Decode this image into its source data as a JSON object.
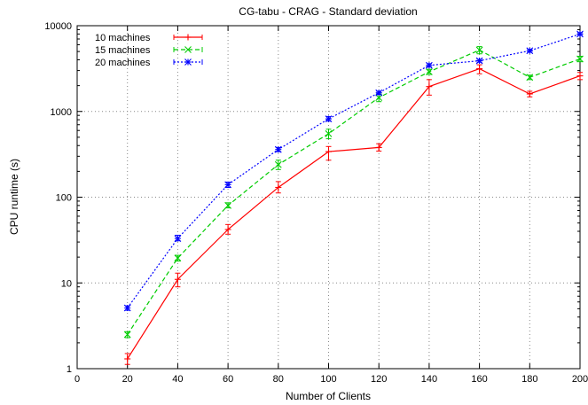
{
  "chart_data": {
    "type": "line",
    "title": "CG-tabu - CRAG - Standard deviation",
    "xlabel": "Number of Clients",
    "ylabel": "CPU runtime (s)",
    "xlim": [
      0,
      200
    ],
    "ylim": [
      1,
      10000
    ],
    "yscale": "log",
    "grid": true,
    "legend_position": "top-left",
    "x_ticks": [
      0,
      20,
      40,
      60,
      80,
      100,
      120,
      140,
      160,
      180,
      200
    ],
    "x_tick_labels": [
      "0",
      "20",
      "40",
      "60",
      "80",
      "100",
      "120",
      "140",
      "160",
      "180",
      "200"
    ],
    "y_ticks": [
      1,
      10,
      100,
      1000,
      10000
    ],
    "y_tick_labels": [
      "1",
      "10",
      "100",
      "1000",
      "10000"
    ],
    "x": [
      20,
      40,
      60,
      80,
      100,
      120,
      140,
      160,
      180,
      200
    ],
    "series": [
      {
        "name": "10 machines",
        "color": "#ff0000",
        "marker": "plus",
        "dash": "solid",
        "values": [
          1.3,
          11,
          42,
          130,
          340,
          380,
          1950,
          3150,
          1600,
          2600
        ],
        "errors_low": [
          1.12,
          9,
          37,
          112,
          270,
          345,
          1550,
          2750,
          1480,
          2350
        ],
        "errors_high": [
          1.5,
          13,
          48,
          152,
          390,
          420,
          2350,
          3500,
          1720,
          2850
        ]
      },
      {
        "name": "15 machines",
        "color": "#00cc00",
        "marker": "x",
        "dash": "dashed",
        "values": [
          2.5,
          19.5,
          80,
          240,
          550,
          1450,
          2900,
          5200,
          2500,
          4100
        ],
        "errors_low": [
          2.3,
          18,
          75,
          210,
          480,
          1300,
          2700,
          4700,
          2350,
          3800
        ],
        "errors_high": [
          2.7,
          21,
          86,
          270,
          620,
          1600,
          3100,
          5700,
          2650,
          4400
        ]
      },
      {
        "name": "20 machines",
        "color": "#0000ff",
        "marker": "star",
        "dash": "dotted",
        "values": [
          5.1,
          33,
          140,
          360,
          820,
          1650,
          3450,
          3900,
          5100,
          8000
        ],
        "errors_low": [
          4.8,
          31,
          130,
          340,
          770,
          1580,
          3300,
          3750,
          4900,
          7700
        ],
        "errors_high": [
          5.4,
          36,
          150,
          380,
          870,
          1720,
          3600,
          4050,
          5300,
          8300
        ]
      }
    ]
  }
}
